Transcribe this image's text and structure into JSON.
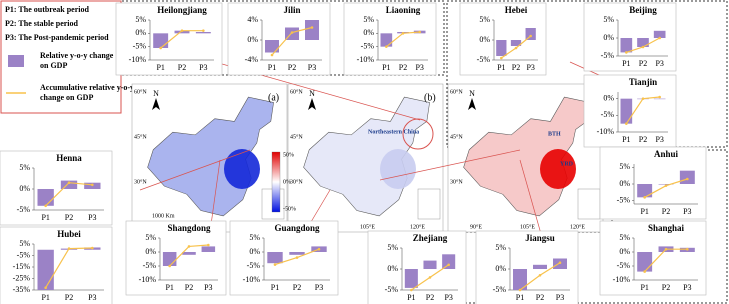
{
  "legend": {
    "periods": [
      "P1: The outbreak period",
      "P2: The stable period",
      "P3: The Post-pandemic period"
    ],
    "series": [
      "Relative y-o-y change on GDP",
      "Accumulative relative y-o-y change on GDP"
    ]
  },
  "maps": [
    {
      "label": "(a)",
      "north": "N",
      "lat": [
        "60°N",
        "45°N",
        "30°N"
      ],
      "lon": [
        "90°E",
        "105°E",
        "120°E"
      ],
      "scale": "1000 Km"
    },
    {
      "label": "(b)",
      "north": "N",
      "lat": [
        "60°N",
        "45°N",
        "30°N"
      ],
      "lon": [
        "90°E",
        "105°E",
        "120°E"
      ],
      "annotation": "Northeastern China"
    },
    {
      "label": "(c)",
      "north": "N",
      "lat": [
        "60°N",
        "45°N",
        "30°N"
      ],
      "lon": [
        "90°E",
        "105°E",
        "120°E"
      ],
      "annotations": [
        "BTH",
        "YRD"
      ]
    }
  ],
  "colorbar": {
    "ticks": [
      "50%",
      "0%",
      "-50%"
    ]
  },
  "chart_data": [
    {
      "type": "bar",
      "title": "Heilongjiang",
      "categories": [
        "P1",
        "P2",
        "P3"
      ],
      "series": [
        {
          "color": "#9b82c6",
          "values": [
            -5.5,
            1,
            0.5
          ]
        },
        {
          "type": "line",
          "color": "#f8c24c",
          "values": [
            -5.5,
            1,
            1
          ]
        }
      ],
      "ylim": [
        -10,
        5
      ],
      "yticks": [
        {
          "value": 5,
          "label": "5%"
        },
        {
          "value": 0,
          "label": "0%"
        },
        {
          "value": -5,
          "label": "-5%"
        },
        {
          "value": -10,
          "label": "-10%"
        }
      ]
    },
    {
      "type": "bar",
      "title": "Jilin",
      "categories": [
        "P1",
        "P2",
        "P3"
      ],
      "series": [
        {
          "color": "#9b82c6",
          "values": [
            -2.5,
            2.5,
            4
          ]
        },
        {
          "type": "line",
          "color": "#f8c24c",
          "values": [
            -3,
            1.5,
            2.5
          ]
        }
      ],
      "ylim": [
        -4,
        4
      ],
      "yticks": [
        {
          "value": 4,
          "label": "4%"
        },
        {
          "value": 0,
          "label": "0%"
        },
        {
          "value": -4,
          "label": "-4%"
        }
      ]
    },
    {
      "type": "bar",
      "title": "Liaoning",
      "categories": [
        "P1",
        "P2",
        "P3"
      ],
      "series": [
        {
          "color": "#9b82c6",
          "values": [
            -5,
            0.5,
            1
          ]
        },
        {
          "type": "line",
          "color": "#f8c24c",
          "values": [
            -5,
            0,
            0.5
          ]
        }
      ],
      "ylim": [
        -10,
        5
      ],
      "yticks": [
        {
          "value": 5,
          "label": "5%"
        },
        {
          "value": 0,
          "label": "0%"
        },
        {
          "value": -5,
          "label": "-5%"
        },
        {
          "value": -10,
          "label": "-10%"
        }
      ]
    },
    {
      "type": "bar",
      "title": "Hebei",
      "categories": [
        "P1",
        "P2",
        "P3"
      ],
      "series": [
        {
          "color": "#9b82c6",
          "values": [
            -4,
            -1.5,
            3
          ]
        },
        {
          "type": "line",
          "color": "#f8c24c",
          "values": [
            -4.5,
            -2,
            1
          ]
        }
      ],
      "ylim": [
        -5,
        5
      ],
      "yticks": [
        {
          "value": 5,
          "label": "5%"
        },
        {
          "value": 0,
          "label": "0%"
        },
        {
          "value": -5,
          "label": "-5%"
        }
      ]
    },
    {
      "type": "bar",
      "title": "Beijing",
      "categories": [
        "P1",
        "P2",
        "P3"
      ],
      "series": [
        {
          "color": "#9b82c6",
          "values": [
            -4,
            -2.5,
            2
          ]
        },
        {
          "type": "line",
          "color": "#f8c24c",
          "values": [
            -4,
            -2.5,
            0
          ]
        }
      ],
      "ylim": [
        -5,
        5
      ],
      "yticks": [
        {
          "value": 5,
          "label": "5%"
        },
        {
          "value": 0,
          "label": "0%"
        },
        {
          "value": -5,
          "label": "-5%"
        }
      ]
    },
    {
      "type": "bar",
      "title": "Tianjin",
      "categories": [
        "P1",
        "P2",
        "P3"
      ],
      "series": [
        {
          "color": "#9b82c6",
          "values": [
            -7.5,
            0,
            0
          ]
        },
        {
          "type": "line",
          "color": "#f8c24c",
          "values": [
            -7.5,
            0,
            0.5
          ]
        }
      ],
      "ylim": [
        -10,
        2
      ],
      "yticks": [
        {
          "value": 0,
          "label": "0%"
        },
        {
          "value": -5,
          "label": "-5%"
        },
        {
          "value": -10,
          "label": "-10%"
        }
      ]
    },
    {
      "type": "bar",
      "title": "Anhui",
      "categories": [
        "P1",
        "P2",
        "P3"
      ],
      "series": [
        {
          "color": "#9b82c6",
          "values": [
            -4,
            0,
            4
          ]
        },
        {
          "type": "line",
          "color": "#f8c24c",
          "values": [
            -4,
            -0.5,
            1.5
          ]
        }
      ],
      "ylim": [
        -6,
        6
      ],
      "yticks": [
        {
          "value": 5,
          "label": "5%"
        },
        {
          "value": 0,
          "label": "0%"
        },
        {
          "value": -5,
          "label": "-5%"
        }
      ]
    },
    {
      "type": "bar",
      "title": "Shanghai",
      "categories": [
        "P1",
        "P2",
        "P3"
      ],
      "series": [
        {
          "color": "#9b82c6",
          "values": [
            -7,
            2,
            1.5
          ]
        },
        {
          "type": "line",
          "color": "#f8c24c",
          "values": [
            -7,
            1,
            1
          ]
        }
      ],
      "ylim": [
        -10,
        5
      ],
      "yticks": [
        {
          "value": 5,
          "label": "5%"
        },
        {
          "value": 0,
          "label": "0%"
        },
        {
          "value": -5,
          "label": "-5%"
        },
        {
          "value": -10,
          "label": "-10%"
        }
      ]
    },
    {
      "type": "bar",
      "title": "Jiangsu",
      "categories": [
        "P1",
        "P2",
        "P3"
      ],
      "series": [
        {
          "color": "#9b82c6",
          "values": [
            -5,
            1,
            2.5
          ]
        },
        {
          "type": "line",
          "color": "#f8c24c",
          "values": [
            -5,
            -1.5,
            1.5
          ]
        }
      ],
      "ylim": [
        -5,
        5
      ],
      "yticks": [
        {
          "value": 5,
          "label": "5%"
        },
        {
          "value": 0,
          "label": "0%"
        },
        {
          "value": -5,
          "label": "-5%"
        }
      ]
    },
    {
      "type": "bar",
      "title": "Zhejiang",
      "categories": [
        "P1",
        "P2",
        "P3"
      ],
      "series": [
        {
          "color": "#9b82c6",
          "values": [
            -4.5,
            2,
            3.5
          ]
        },
        {
          "type": "line",
          "color": "#f8c24c",
          "values": [
            -5,
            -2,
            1
          ]
        }
      ],
      "ylim": [
        -5,
        5
      ],
      "yticks": [
        {
          "value": 5,
          "label": "5%"
        },
        {
          "value": 0,
          "label": "0%"
        },
        {
          "value": -5,
          "label": "-5%"
        }
      ]
    },
    {
      "type": "bar",
      "title": "Guangdong",
      "categories": [
        "P1",
        "P2",
        "P3"
      ],
      "series": [
        {
          "color": "#9b82c6",
          "values": [
            -4,
            -1,
            2
          ]
        },
        {
          "type": "line",
          "color": "#f8c24c",
          "values": [
            -4.5,
            -2,
            1
          ]
        }
      ],
      "ylim": [
        -10,
        5
      ],
      "yticks": [
        {
          "value": 5,
          "label": "5%"
        },
        {
          "value": 0,
          "label": "0%"
        },
        {
          "value": -5,
          "label": "-5%"
        },
        {
          "value": -10,
          "label": "-10%"
        }
      ]
    },
    {
      "type": "bar",
      "title": "Shangdong",
      "categories": [
        "P1",
        "P2",
        "P3"
      ],
      "series": [
        {
          "color": "#9b82c6",
          "values": [
            -5,
            -1,
            2
          ]
        },
        {
          "type": "line",
          "color": "#f8c24c",
          "values": [
            -5,
            2,
            2.5
          ]
        }
      ],
      "ylim": [
        -10,
        5
      ],
      "yticks": [
        {
          "value": 5,
          "label": "5%"
        },
        {
          "value": 0,
          "label": "0%"
        },
        {
          "value": -5,
          "label": "-5%"
        },
        {
          "value": -10,
          "label": "-10%"
        }
      ]
    },
    {
      "type": "bar",
      "title": "Hubei",
      "categories": [
        "P1",
        "P2",
        "P3"
      ],
      "series": [
        {
          "color": "#9b82c6",
          "values": [
            -35,
            1,
            2
          ]
        },
        {
          "type": "line",
          "color": "#f8c24c",
          "values": [
            -33,
            1,
            1.5
          ]
        }
      ],
      "ylim": [
        -35,
        5
      ],
      "yticks": [
        {
          "value": 5,
          "label": "5%"
        },
        {
          "value": -5,
          "label": "-5%"
        },
        {
          "value": -15,
          "label": "-15%"
        },
        {
          "value": -25,
          "label": "-25%"
        },
        {
          "value": -35,
          "label": "-35%"
        }
      ]
    },
    {
      "type": "bar",
      "title": "Henna",
      "categories": [
        "P1",
        "P2",
        "P3"
      ],
      "series": [
        {
          "color": "#9b82c6",
          "values": [
            -4,
            2,
            1.5
          ]
        },
        {
          "type": "line",
          "color": "#f8c24c",
          "values": [
            -4,
            1.5,
            1
          ]
        }
      ],
      "ylim": [
        -5,
        5
      ],
      "yticks": [
        {
          "value": 5,
          "label": "5%"
        },
        {
          "value": 0,
          "label": "0%"
        },
        {
          "value": -5,
          "label": "-5%"
        }
      ]
    }
  ]
}
